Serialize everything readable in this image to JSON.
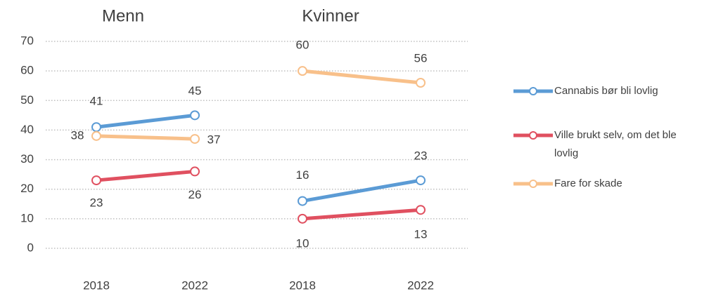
{
  "chart_data": [
    {
      "type": "line",
      "title": "Menn",
      "categories": [
        "2018",
        "2022"
      ],
      "ylim": [
        0,
        70
      ],
      "yticks": [
        0,
        10,
        20,
        30,
        40,
        50,
        60,
        70
      ],
      "grid": true,
      "series": [
        {
          "name": "Cannabis bør bli lovlig",
          "color": "#5b9bd5",
          "values": [
            41,
            45
          ]
        },
        {
          "name": "Ville brukt selv, om det ble lovlig",
          "color": "#e05060",
          "values": [
            23,
            26
          ]
        },
        {
          "name": "Fare for skade",
          "color": "#f8c08a",
          "values": [
            38,
            37
          ]
        }
      ]
    },
    {
      "type": "line",
      "title": "Kvinner",
      "categories": [
        "2018",
        "2022"
      ],
      "ylim": [
        0,
        70
      ],
      "yticks": [
        0,
        10,
        20,
        30,
        40,
        50,
        60,
        70
      ],
      "grid": true,
      "series": [
        {
          "color": "#5b9bd5",
          "values": [
            16,
            23
          ]
        },
        {
          "color": "#e05060",
          "values": [
            10,
            13
          ]
        },
        {
          "color": "#f8c08a",
          "values": [
            60,
            56
          ]
        }
      ]
    }
  ]
}
